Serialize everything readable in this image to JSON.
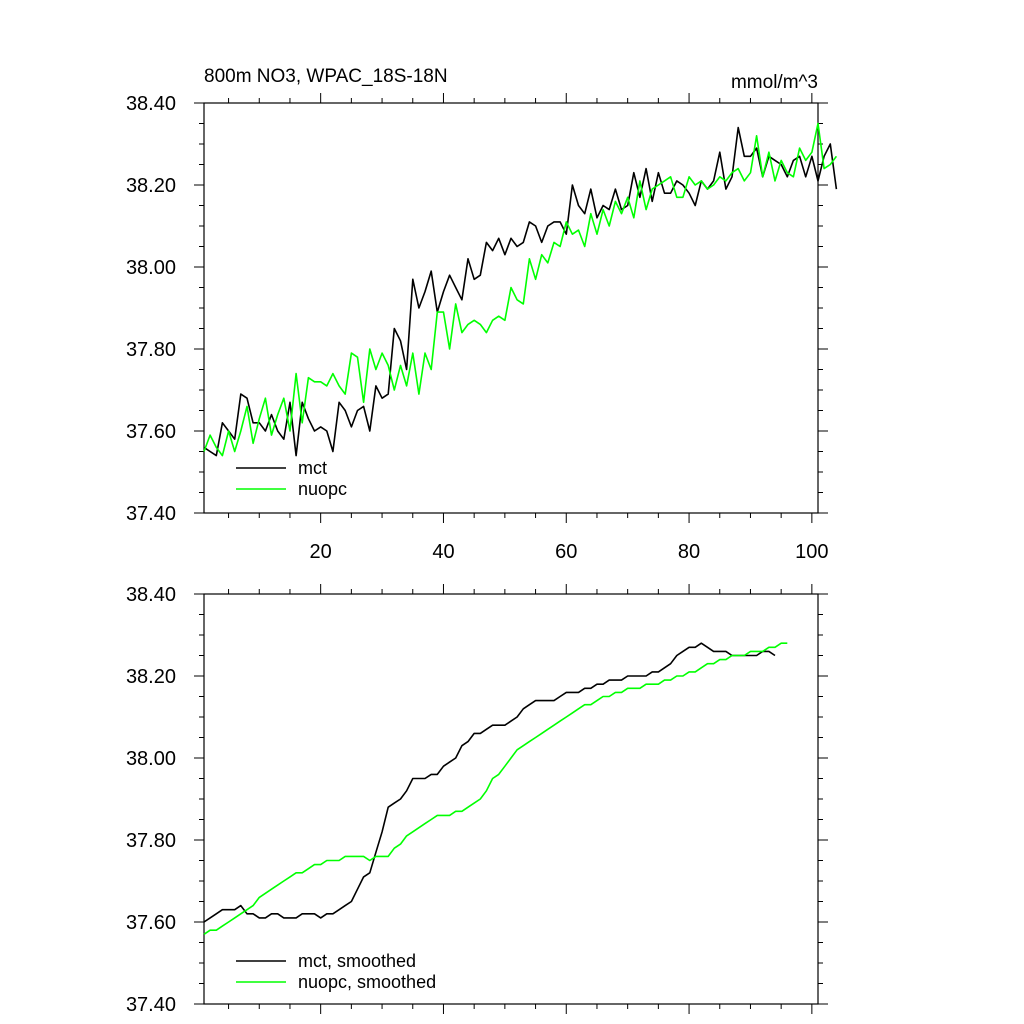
{
  "chart_data": [
    {
      "type": "line",
      "title": "800m NO3, WPAC_18S-18N",
      "units": "mmol/m^3",
      "xlim": [
        1,
        101
      ],
      "ylim": [
        37.4,
        38.4
      ],
      "yticks": [
        "37.40",
        "37.60",
        "37.80",
        "38.00",
        "38.20",
        "38.40"
      ],
      "xticks": [
        "20",
        "40",
        "60",
        "80",
        "100"
      ],
      "legend_position": "bottom-left",
      "series": [
        {
          "name": "mct",
          "color": "#000000",
          "values": [
            37.56,
            37.55,
            37.54,
            37.62,
            37.6,
            37.58,
            37.69,
            37.68,
            37.62,
            37.62,
            37.6,
            37.64,
            37.6,
            37.58,
            37.67,
            37.54,
            37.67,
            37.63,
            37.6,
            37.61,
            37.6,
            37.55,
            37.67,
            37.65,
            37.61,
            37.65,
            37.66,
            37.6,
            37.71,
            37.68,
            37.69,
            37.85,
            37.82,
            37.75,
            37.97,
            37.9,
            37.94,
            37.99,
            37.89,
            37.94,
            37.98,
            37.95,
            37.92,
            38.02,
            37.97,
            37.98,
            38.06,
            38.04,
            38.07,
            38.03,
            38.07,
            38.05,
            38.06,
            38.11,
            38.1,
            38.06,
            38.1,
            38.11,
            38.11,
            38.08,
            38.2,
            38.15,
            38.13,
            38.19,
            38.12,
            38.15,
            38.14,
            38.19,
            38.14,
            38.15,
            38.23,
            38.17,
            38.24,
            38.16,
            38.23,
            38.18,
            38.18,
            38.21,
            38.2,
            38.18,
            38.15,
            38.21,
            38.19,
            38.21,
            38.28,
            38.19,
            38.22,
            38.34,
            38.27,
            38.27,
            38.29,
            38.22,
            38.27,
            38.26,
            38.25,
            38.22,
            38.26,
            38.27,
            38.22,
            38.27,
            38.21,
            38.27,
            38.3,
            38.19
          ]
        },
        {
          "name": "nuopc",
          "color": "#00ff00",
          "values": [
            37.55,
            37.59,
            37.56,
            37.54,
            37.6,
            37.55,
            37.6,
            37.66,
            37.57,
            37.63,
            37.68,
            37.59,
            37.64,
            37.68,
            37.6,
            37.74,
            37.62,
            37.73,
            37.72,
            37.72,
            37.71,
            37.74,
            37.71,
            37.69,
            37.79,
            37.78,
            37.67,
            37.8,
            37.75,
            37.79,
            37.76,
            37.7,
            37.76,
            37.71,
            37.79,
            37.69,
            37.79,
            37.75,
            37.89,
            37.89,
            37.8,
            37.91,
            37.84,
            37.86,
            37.87,
            37.86,
            37.84,
            37.87,
            37.88,
            37.87,
            37.95,
            37.92,
            37.91,
            38.02,
            37.97,
            38.03,
            38.01,
            38.06,
            38.05,
            38.11,
            38.08,
            38.09,
            38.05,
            38.13,
            38.08,
            38.14,
            38.1,
            38.16,
            38.13,
            38.17,
            38.12,
            38.21,
            38.14,
            38.19,
            38.2,
            38.21,
            38.22,
            38.17,
            38.17,
            38.22,
            38.2,
            38.21,
            38.19,
            38.2,
            38.22,
            38.21,
            38.23,
            38.24,
            38.21,
            38.23,
            38.32,
            38.22,
            38.28,
            38.21,
            38.26,
            38.23,
            38.22,
            38.29,
            38.26,
            38.28,
            38.35,
            38.24,
            38.25,
            38.27
          ]
        }
      ]
    },
    {
      "type": "line",
      "title": "",
      "xlim": [
        1,
        101
      ],
      "ylim": [
        37.4,
        38.4
      ],
      "yticks": [
        "37.40",
        "37.60",
        "37.80",
        "38.00",
        "38.20",
        "38.40"
      ],
      "legend_position": "bottom-left",
      "series": [
        {
          "name": "mct, smoothed",
          "color": "#000000",
          "values": [
            37.6,
            37.61,
            37.62,
            37.63,
            37.63,
            37.63,
            37.64,
            37.62,
            37.62,
            37.61,
            37.61,
            37.62,
            37.62,
            37.61,
            37.61,
            37.61,
            37.62,
            37.62,
            37.62,
            37.61,
            37.62,
            37.62,
            37.63,
            37.64,
            37.65,
            37.68,
            37.71,
            37.72,
            37.77,
            37.82,
            37.88,
            37.89,
            37.9,
            37.92,
            37.95,
            37.95,
            37.95,
            37.96,
            37.96,
            37.98,
            37.99,
            38.0,
            38.03,
            38.04,
            38.06,
            38.06,
            38.07,
            38.08,
            38.08,
            38.08,
            38.09,
            38.1,
            38.12,
            38.13,
            38.14,
            38.14,
            38.14,
            38.14,
            38.15,
            38.16,
            38.16,
            38.16,
            38.17,
            38.17,
            38.18,
            38.18,
            38.19,
            38.19,
            38.19,
            38.2,
            38.2,
            38.2,
            38.2,
            38.21,
            38.21,
            38.22,
            38.23,
            38.25,
            38.26,
            38.27,
            38.27,
            38.28,
            38.27,
            38.26,
            38.26,
            38.26,
            38.25,
            38.25,
            38.25,
            38.25,
            38.25,
            38.26,
            38.26,
            38.25
          ]
        },
        {
          "name": "nuopc, smoothed",
          "color": "#00ff00",
          "values": [
            37.57,
            37.58,
            37.58,
            37.59,
            37.6,
            37.61,
            37.62,
            37.63,
            37.64,
            37.66,
            37.67,
            37.68,
            37.69,
            37.7,
            37.71,
            37.72,
            37.72,
            37.73,
            37.74,
            37.74,
            37.75,
            37.75,
            37.75,
            37.76,
            37.76,
            37.76,
            37.76,
            37.75,
            37.76,
            37.76,
            37.76,
            37.78,
            37.79,
            37.81,
            37.82,
            37.83,
            37.84,
            37.85,
            37.86,
            37.86,
            37.86,
            37.87,
            37.87,
            37.88,
            37.89,
            37.9,
            37.92,
            37.95,
            37.96,
            37.98,
            38.0,
            38.02,
            38.03,
            38.04,
            38.05,
            38.06,
            38.07,
            38.08,
            38.09,
            38.1,
            38.11,
            38.12,
            38.13,
            38.13,
            38.14,
            38.15,
            38.15,
            38.16,
            38.16,
            38.17,
            38.17,
            38.17,
            38.18,
            38.18,
            38.18,
            38.19,
            38.19,
            38.2,
            38.2,
            38.21,
            38.21,
            38.22,
            38.23,
            38.23,
            38.24,
            38.24,
            38.25,
            38.25,
            38.25,
            38.26,
            38.26,
            38.26,
            38.27,
            38.27,
            38.28,
            38.28
          ]
        }
      ]
    }
  ]
}
